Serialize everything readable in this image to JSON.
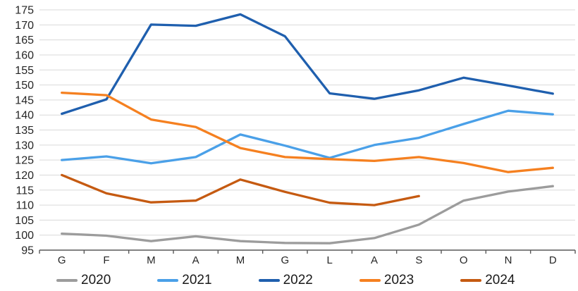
{
  "chart_data": {
    "type": "line",
    "title": "",
    "x_categories": [
      "G",
      "F",
      "M",
      "A",
      "M",
      "G",
      "L",
      "A",
      "S",
      "O",
      "N",
      "D"
    ],
    "y_axis": {
      "min": 95,
      "max": 175,
      "step": 5
    },
    "grid": "horizontal",
    "legend_position": "bottom",
    "series": [
      {
        "name": "2020",
        "color": "#9c9c9c",
        "values": [
          100.5,
          99.8,
          98.0,
          99.6,
          98.0,
          97.4,
          97.3,
          99.0,
          103.5,
          111.5,
          114.5,
          116.3
        ]
      },
      {
        "name": "2021",
        "color": "#4aa0e8",
        "values": [
          125.0,
          126.2,
          123.9,
          126.0,
          133.5,
          129.8,
          125.7,
          130.0,
          132.4,
          137.0,
          141.4,
          140.2
        ]
      },
      {
        "name": "2022",
        "color": "#1f5fae",
        "values": [
          140.4,
          145.2,
          170.1,
          169.7,
          173.5,
          166.2,
          147.2,
          145.4,
          148.2,
          152.4,
          149.8,
          147.1
        ]
      },
      {
        "name": "2023",
        "color": "#f58020",
        "values": [
          147.4,
          146.6,
          138.5,
          136.0,
          129.0,
          126.0,
          125.3,
          124.7,
          126.0,
          124.0,
          121.0,
          122.4
        ]
      },
      {
        "name": "2024",
        "color": "#c55a11",
        "values": [
          120.0,
          113.9,
          110.9,
          111.5,
          118.5,
          114.4,
          110.8,
          110.0,
          113.0
        ]
      }
    ],
    "colors": {
      "gridline": "#d9d9d9",
      "axis": "#595959",
      "tick_label": "#262626",
      "legend_text": "#1a1a1a"
    }
  }
}
